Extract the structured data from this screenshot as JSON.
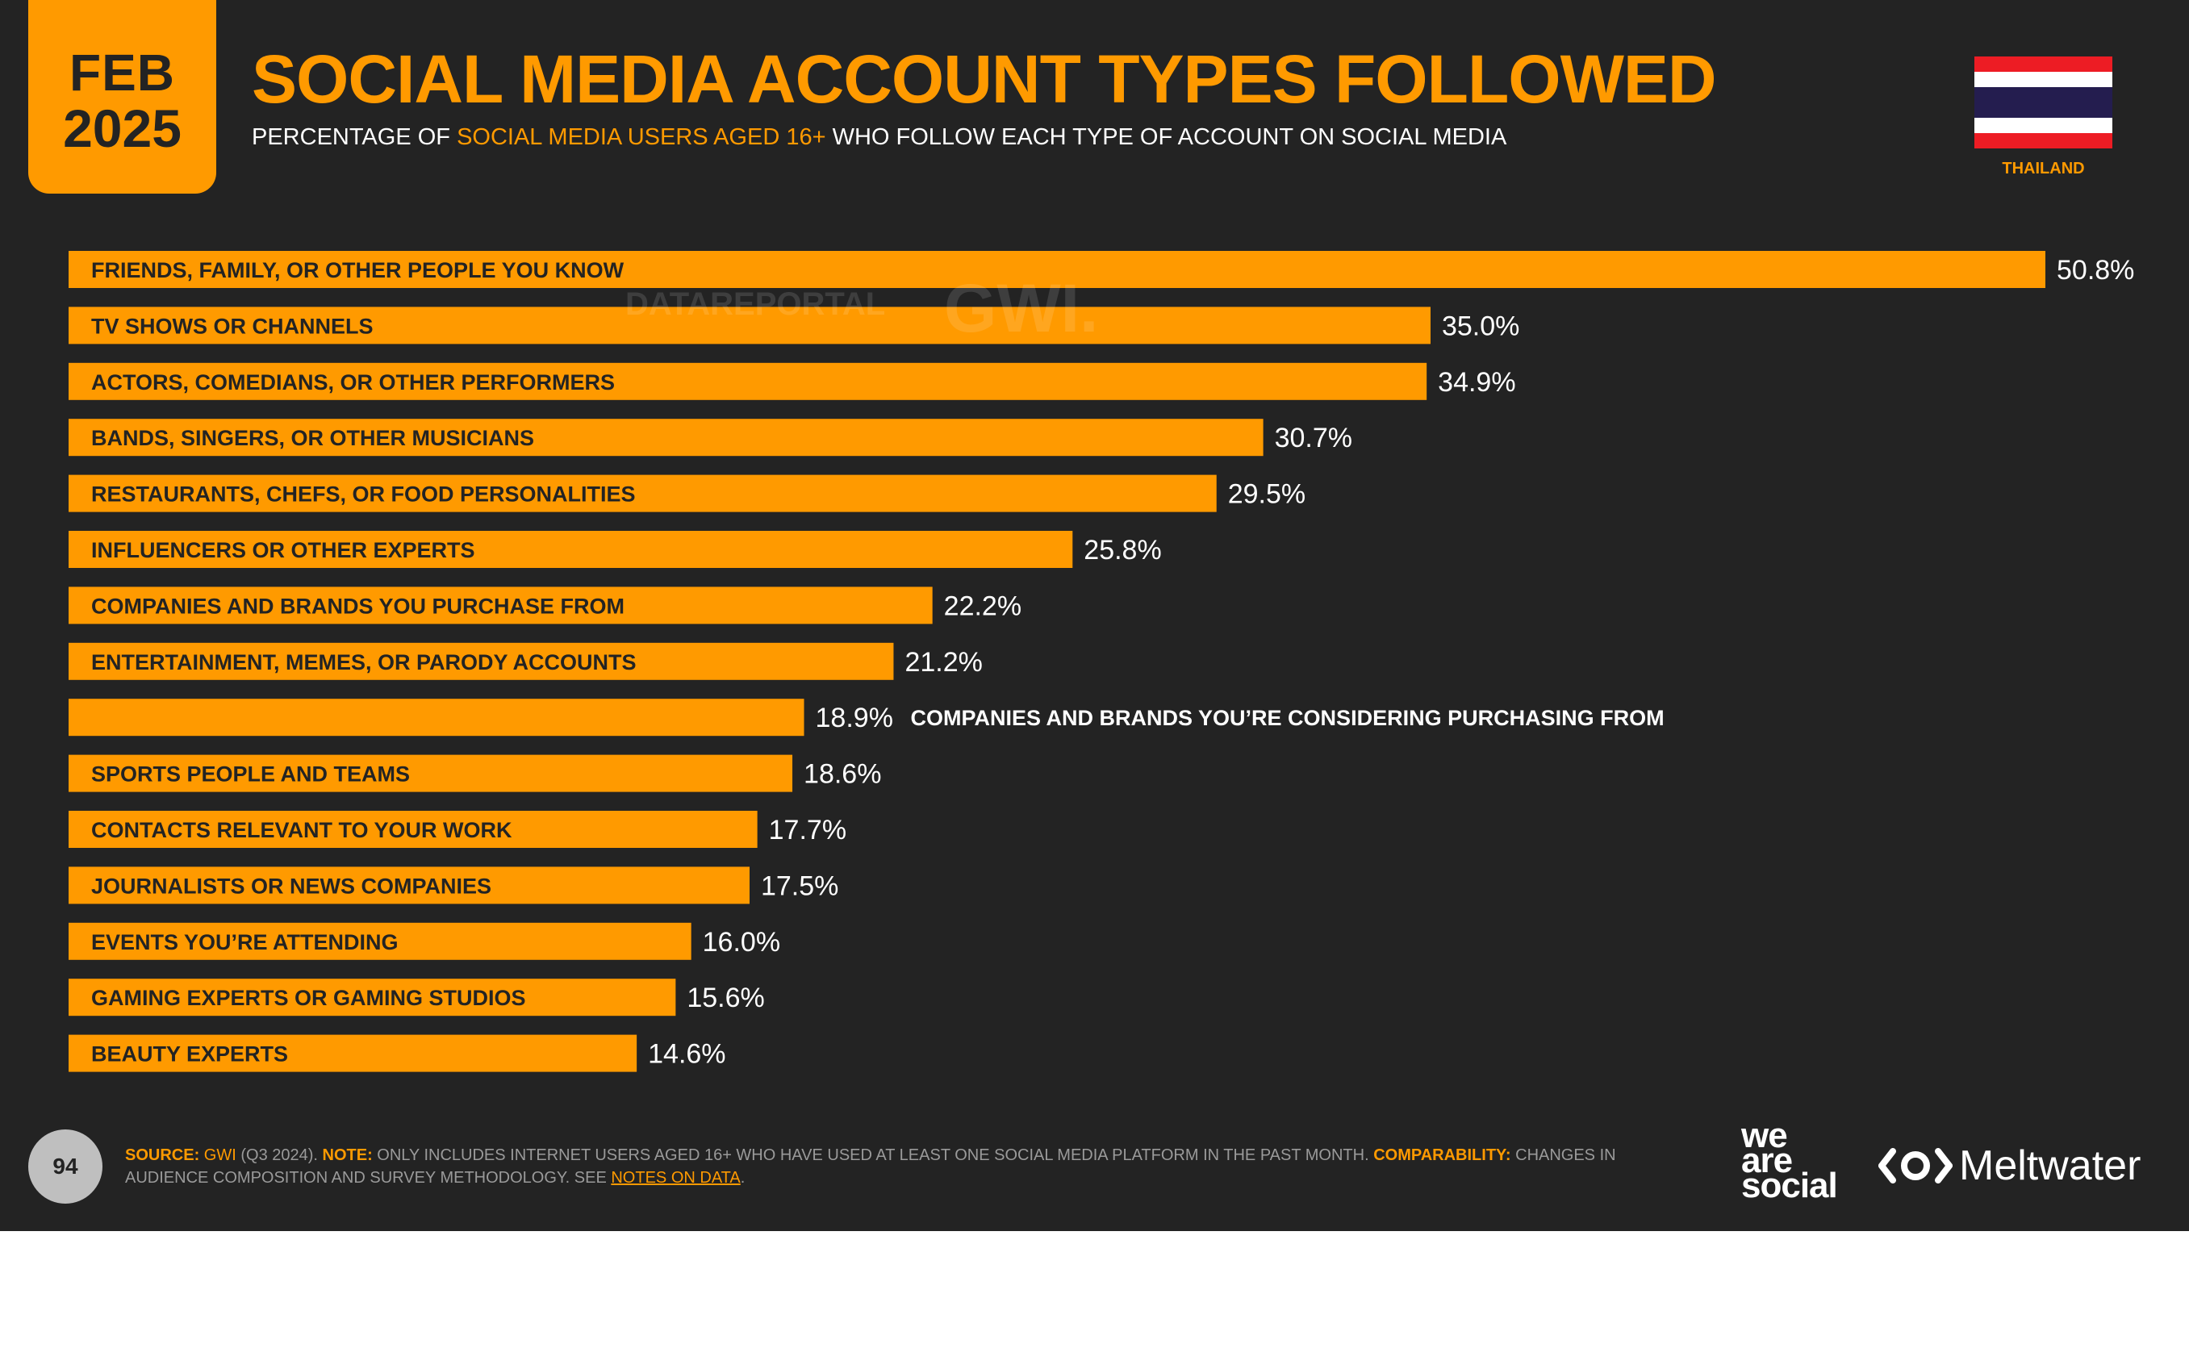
{
  "header": {
    "date_month": "FEB",
    "date_year": "2025",
    "title": "SOCIAL MEDIA ACCOUNT TYPES FOLLOWED",
    "subtitle_pre": "PERCENTAGE OF ",
    "subtitle_highlight": "SOCIAL MEDIA USERS AGED 16+",
    "subtitle_post": " WHO FOLLOW EACH TYPE OF ACCOUNT ON SOCIAL MEDIA",
    "country": "THAILAND",
    "flag_icon": "thailand-flag-icon"
  },
  "watermark": {
    "datareportal": "DATAREPORTAL",
    "gwi": "GWI."
  },
  "chart_data": {
    "type": "bar",
    "orientation": "horizontal",
    "categories": [
      "FRIENDS, FAMILY, OR OTHER PEOPLE YOU KNOW",
      "TV SHOWS OR CHANNELS",
      "ACTORS, COMEDIANS, OR OTHER PERFORMERS",
      "BANDS, SINGERS, OR OTHER MUSICIANS",
      "RESTAURANTS, CHEFS, OR FOOD PERSONALITIES",
      "INFLUENCERS OR OTHER EXPERTS",
      "COMPANIES AND BRANDS YOU PURCHASE FROM",
      "ENTERTAINMENT, MEMES, OR PARODY ACCOUNTS",
      "COMPANIES AND BRANDS YOU’RE CONSIDERING PURCHASING FROM",
      "SPORTS PEOPLE AND TEAMS",
      "CONTACTS RELEVANT TO YOUR WORK",
      "JOURNALISTS OR NEWS COMPANIES",
      "EVENTS YOU’RE ATTENDING",
      "GAMING EXPERTS OR GAMING STUDIOS",
      "BEAUTY EXPERTS"
    ],
    "values": [
      50.8,
      35.0,
      34.9,
      30.7,
      29.5,
      25.8,
      22.2,
      21.2,
      18.9,
      18.6,
      17.7,
      17.5,
      16.0,
      15.6,
      14.6
    ],
    "value_labels": [
      "50.8%",
      "35.0%",
      "34.9%",
      "30.7%",
      "29.5%",
      "25.8%",
      "22.2%",
      "21.2%",
      "18.9%",
      "18.6%",
      "17.7%",
      "17.5%",
      "16.0%",
      "15.6%",
      "14.6%"
    ],
    "label_outside": [
      false,
      false,
      false,
      false,
      false,
      false,
      false,
      false,
      true,
      false,
      false,
      false,
      false,
      false,
      false
    ],
    "xlim": [
      0,
      50.8
    ],
    "grid": false,
    "legend": "none",
    "bar_color": "#ff9a00",
    "background": "#232323"
  },
  "footer": {
    "page_number": "94",
    "source_key": "SOURCE:",
    "source_value": "GWI",
    "source_detail": " (Q3 2024). ",
    "note_key": "NOTE:",
    "note_text": " ONLY INCLUDES INTERNET USERS AGED 16+ WHO HAVE USED AT LEAST ONE SOCIAL MEDIA PLATFORM IN THE PAST MONTH. ",
    "comparability_key": "COMPARABILITY:",
    "comparability_text": " CHANGES IN AUDIENCE COMPOSITION AND SURVEY METHODOLOGY. SEE ",
    "notes_link": "NOTES ON DATA",
    "end": ".",
    "logo_was_1": "we",
    "logo_was_2": "are",
    "logo_was_3": "social",
    "logo_mw": "Meltwater"
  },
  "colors": {
    "accent": "#ff9a00",
    "background": "#232323",
    "text": "#ffffff"
  }
}
